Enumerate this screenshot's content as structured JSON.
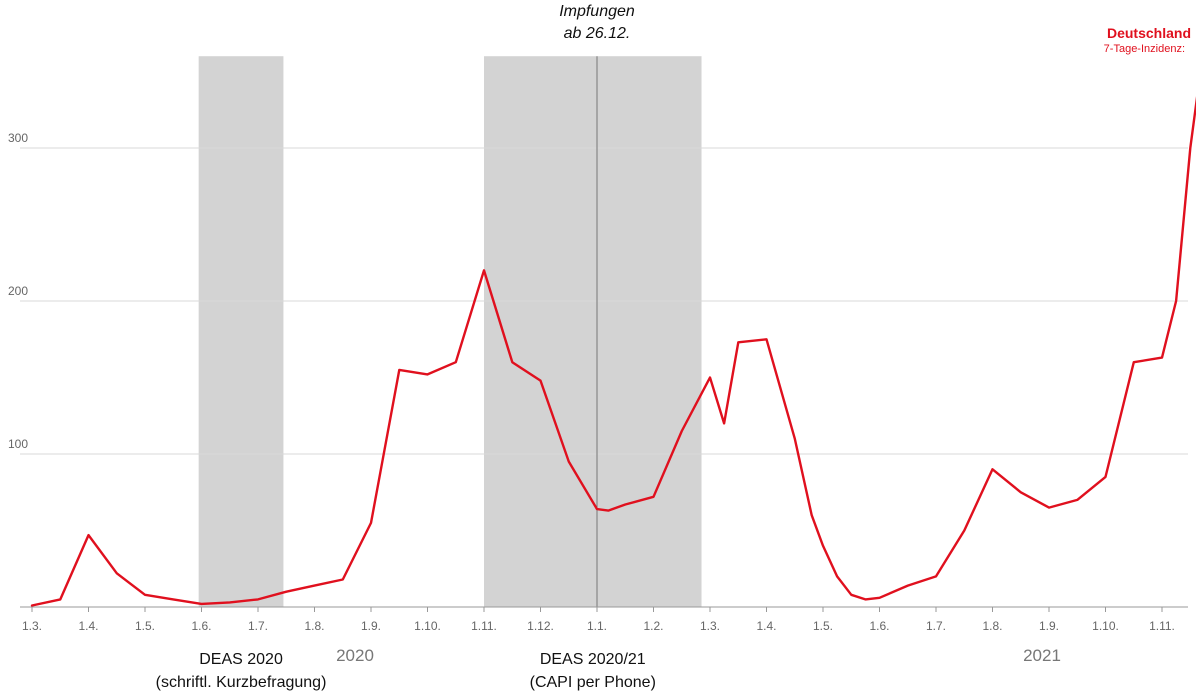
{
  "chart_data": {
    "type": "line",
    "legend": {
      "title": "Deutschland",
      "subtitle": "7-Tage-Inzidenz:",
      "placement": "top-right",
      "color": "#e0101e"
    },
    "y_ticks": [
      "100",
      "200",
      "300"
    ],
    "ylim": [
      0,
      360
    ],
    "x_ticks": [
      "1.3.",
      "1.4.",
      "1.5.",
      "1.6.",
      "1.7.",
      "1.8.",
      "1.9.",
      "1.10.",
      "1.11.",
      "1.12.",
      "1.1.",
      "1.2.",
      "1.3.",
      "1.4.",
      "1.5.",
      "1.6.",
      "1.7.",
      "1.8.",
      "1.9.",
      "1.10.",
      "1.11."
    ],
    "years": [
      "2020",
      "2021"
    ],
    "grid": true,
    "series": [
      {
        "color": "#e0101e",
        "x": [
          0,
          0.5,
          1,
          1.5,
          2,
          2.5,
          3,
          3.5,
          4,
          4.5,
          5,
          5.5,
          6,
          6.5,
          7,
          7.5,
          8,
          8.5,
          9,
          9.5,
          10,
          10.2,
          10.5,
          11,
          11.5,
          12,
          12.25,
          12.5,
          13,
          13.5,
          13.8,
          14,
          14.25,
          14.5,
          14.75,
          15,
          15.5,
          16,
          16.5,
          17,
          17.5,
          18,
          18.5,
          19,
          19.5,
          20,
          20.25,
          20.5,
          20.7
        ],
        "values": [
          1,
          5,
          47,
          22,
          8,
          5,
          2,
          3,
          5,
          10,
          14,
          18,
          55,
          155,
          152,
          160,
          220,
          160,
          148,
          95,
          64,
          63,
          67,
          72,
          115,
          150,
          120,
          173,
          175,
          110,
          60,
          40,
          20,
          8,
          5,
          6,
          14,
          20,
          50,
          90,
          75,
          65,
          70,
          85,
          160,
          163,
          200,
          300,
          355
        ]
      }
    ],
    "shaded_periods": [
      {
        "label": "DEAS 2020",
        "sublabel": "(schriftl. Kurzbefragung)",
        "x_start": 2.95,
        "x_end": 4.45
      },
      {
        "label": "DEAS 2020/21",
        "sublabel": "(CAPI per Phone)",
        "x_start": 8.0,
        "x_end": 11.85
      }
    ],
    "annotation": {
      "line1": "Impfungen",
      "line2": "ab 26.12.",
      "x": 10.0
    }
  }
}
